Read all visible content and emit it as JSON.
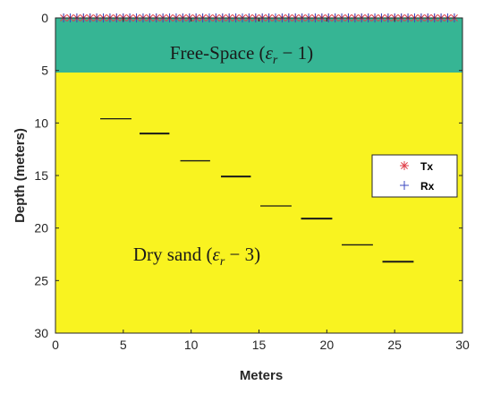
{
  "chart_data": {
    "type": "scatter",
    "xlabel": "Meters",
    "ylabel": "Depth (meters)",
    "xlim": [
      0,
      30
    ],
    "ylim": [
      0,
      30
    ],
    "y_reversed": true,
    "x_ticks": [
      0,
      5,
      10,
      15,
      20,
      25,
      30
    ],
    "y_ticks": [
      0,
      5,
      10,
      15,
      20,
      25,
      30
    ],
    "x_tick_labels": [
      "0",
      "5",
      "10",
      "15",
      "20",
      "25",
      "30"
    ],
    "y_tick_labels": [
      "0",
      "5",
      "10",
      "15",
      "20",
      "25",
      "30"
    ],
    "grid": false,
    "legend_position": "right",
    "layers": [
      {
        "label": "Free-Space (εr − 1)",
        "label_base": "Free-Space (",
        "label_symbol": "ε",
        "label_sub": "r",
        "label_tail": " − 1)",
        "depth_from": 0,
        "depth_to": 5.2,
        "color": "#36b594"
      },
      {
        "label": "Dry sand (εr − 3)",
        "label_base": "Dry sand (",
        "label_symbol": "ε",
        "label_sub": "r",
        "label_tail": " − 3)",
        "depth_from": 5.2,
        "depth_to": 30,
        "color": "#f9f320"
      }
    ],
    "series": [
      {
        "name": "Tx",
        "marker": "asterisk",
        "color": "#e0404a",
        "x_from": 0.6,
        "x_to": 29.4,
        "count": 60,
        "y": 0
      },
      {
        "name": "Rx",
        "marker": "plus",
        "color": "#3c49c2",
        "x_from": 0.6,
        "x_to": 29.4,
        "count": 60,
        "y": 0
      }
    ],
    "targets": [
      {
        "x_from": 3.3,
        "x_to": 5.6,
        "depth": 9.6
      },
      {
        "x_from": 6.2,
        "x_to": 8.4,
        "depth": 11.0
      },
      {
        "x_from": 9.2,
        "x_to": 11.4,
        "depth": 13.6
      },
      {
        "x_from": 12.2,
        "x_to": 14.4,
        "depth": 15.1
      },
      {
        "x_from": 15.1,
        "x_to": 17.4,
        "depth": 17.9
      },
      {
        "x_from": 18.1,
        "x_to": 20.4,
        "depth": 19.1
      },
      {
        "x_from": 21.1,
        "x_to": 23.4,
        "depth": 21.6
      },
      {
        "x_from": 24.1,
        "x_to": 26.4,
        "depth": 23.2
      }
    ]
  }
}
